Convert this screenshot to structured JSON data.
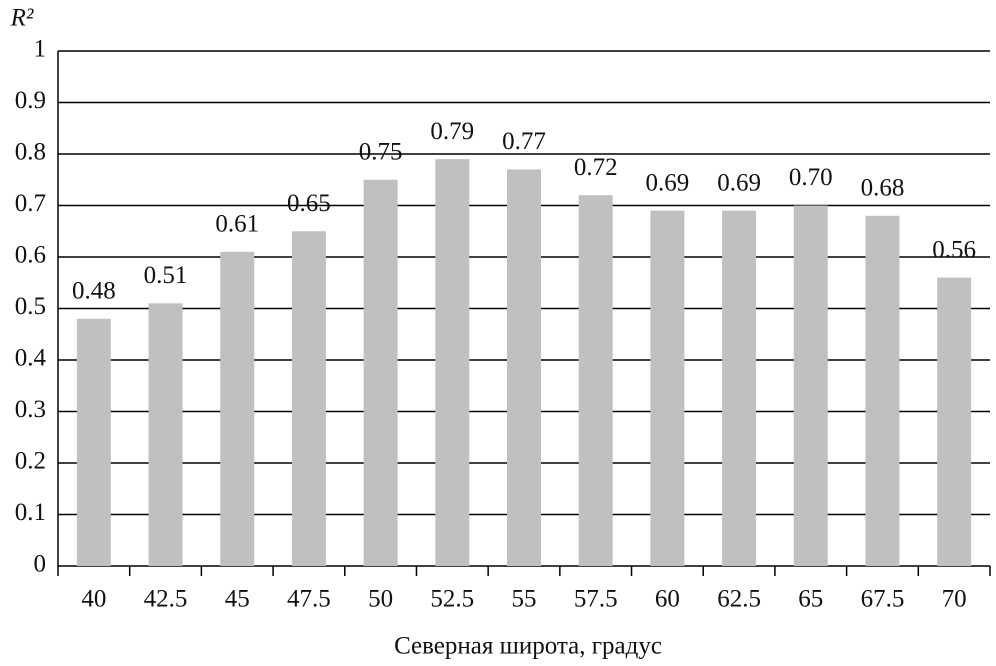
{
  "chart_data": {
    "type": "bar",
    "y_label": "R²",
    "x_label": "Северная широта, градус",
    "categories": [
      "40",
      "42.5",
      "45",
      "47.5",
      "50",
      "52.5",
      "55",
      "57.5",
      "60",
      "62.5",
      "65",
      "67.5",
      "70"
    ],
    "values": [
      0.48,
      0.51,
      0.61,
      0.65,
      0.75,
      0.79,
      0.77,
      0.72,
      0.69,
      0.69,
      0.7,
      0.68,
      0.56
    ],
    "value_labels": [
      "0.48",
      "0.51",
      "0.61",
      "0.65",
      "0.75",
      "0.79",
      "0.77",
      "0.72",
      "0.69",
      "0.69",
      "0.70",
      "0.68",
      "0.56"
    ],
    "color": "#c0c0c0",
    "ylim": [
      0,
      1
    ],
    "yticks": [
      0,
      0.1,
      0.2,
      0.3,
      0.4,
      0.5,
      0.6,
      0.7,
      0.8,
      0.9,
      1
    ],
    "grid": true
  }
}
